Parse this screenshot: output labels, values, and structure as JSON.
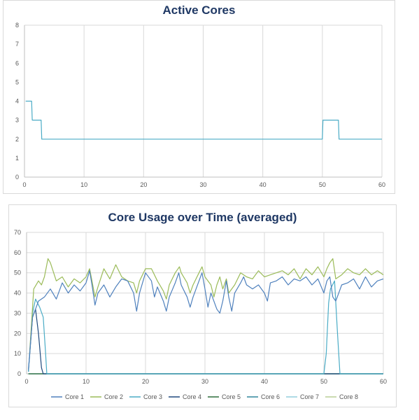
{
  "chart_data": [
    {
      "type": "line",
      "title": "Active Cores",
      "xlabel": "",
      "ylabel": "",
      "xlim": [
        0,
        60
      ],
      "ylim": [
        0,
        8
      ],
      "x_ticks": [
        "0",
        "10",
        "20",
        "30",
        "40",
        "50",
        "60"
      ],
      "y_ticks": [
        "0",
        "1",
        "2",
        "3",
        "4",
        "5",
        "6",
        "7",
        "8"
      ],
      "grid": "vertical",
      "legend": "none",
      "series": [
        {
          "color": "#4bacc6",
          "points": [
            [
              0.2,
              4
            ],
            [
              1.2,
              4
            ],
            [
              1.3,
              3
            ],
            [
              2.8,
              3
            ],
            [
              2.9,
              2
            ],
            [
              50.0,
              2
            ],
            [
              50.1,
              3
            ],
            [
              52.7,
              3
            ],
            [
              52.8,
              2
            ],
            [
              60,
              2
            ]
          ]
        }
      ]
    },
    {
      "type": "line",
      "title": "Core Usage over Time (averaged)",
      "xlabel": "",
      "ylabel": "",
      "xlim": [
        0,
        60
      ],
      "ylim": [
        0,
        70
      ],
      "x_ticks": [
        "0",
        "10",
        "20",
        "30",
        "40",
        "50",
        "60"
      ],
      "y_ticks": [
        "0",
        "10",
        "20",
        "30",
        "40",
        "50",
        "60",
        "70"
      ],
      "grid": "both",
      "legend": "bottom",
      "series": [
        {
          "name": "Core 1",
          "color": "#4f81bd",
          "points": [
            [
              0.3,
              2
            ],
            [
              1,
              28
            ],
            [
              2,
              36
            ],
            [
              3,
              38
            ],
            [
              4,
              42
            ],
            [
              5,
              37
            ],
            [
              6,
              45
            ],
            [
              7,
              40
            ],
            [
              8,
              44
            ],
            [
              9,
              41
            ],
            [
              10,
              45
            ],
            [
              10.6,
              51
            ],
            [
              11,
              44
            ],
            [
              11.5,
              34
            ],
            [
              12,
              40
            ],
            [
              13,
              44
            ],
            [
              14,
              38
            ],
            [
              15,
              43
            ],
            [
              16,
              47
            ],
            [
              17,
              46
            ],
            [
              18,
              40
            ],
            [
              18.5,
              31
            ],
            [
              19,
              40
            ],
            [
              20,
              50
            ],
            [
              21,
              46
            ],
            [
              21.5,
              38
            ],
            [
              22,
              43
            ],
            [
              23,
              36
            ],
            [
              23.5,
              31
            ],
            [
              24,
              38
            ],
            [
              25,
              45
            ],
            [
              25.6,
              50
            ],
            [
              26,
              44
            ],
            [
              27,
              38
            ],
            [
              27.5,
              33
            ],
            [
              28,
              38
            ],
            [
              29,
              46
            ],
            [
              29.5,
              50
            ],
            [
              30,
              42
            ],
            [
              30.5,
              33
            ],
            [
              31,
              40
            ],
            [
              32,
              32
            ],
            [
              32.5,
              30
            ],
            [
              33,
              36
            ],
            [
              33.6,
              46
            ],
            [
              34,
              38
            ],
            [
              34.5,
              31
            ],
            [
              35,
              40
            ],
            [
              36,
              45
            ],
            [
              36.5,
              48
            ],
            [
              37,
              44
            ],
            [
              38,
              42
            ],
            [
              39,
              44
            ],
            [
              40,
              40
            ],
            [
              40.5,
              36
            ],
            [
              41,
              45
            ],
            [
              42,
              46
            ],
            [
              43,
              48
            ],
            [
              44,
              44
            ],
            [
              45,
              47
            ],
            [
              46,
              46
            ],
            [
              47,
              48
            ],
            [
              48,
              44
            ],
            [
              49,
              47
            ],
            [
              50,
              40
            ],
            [
              50.5,
              46
            ],
            [
              51,
              48
            ],
            [
              51.5,
              38
            ],
            [
              52,
              36
            ],
            [
              52.5,
              40
            ],
            [
              53,
              44
            ],
            [
              54,
              45
            ],
            [
              55,
              47
            ],
            [
              56,
              42
            ],
            [
              57,
              48
            ],
            [
              58,
              43
            ],
            [
              59,
              46
            ],
            [
              60,
              47
            ]
          ]
        },
        {
          "name": "Core 2",
          "color": "#9bbb59",
          "points": [
            [
              0.5,
              10
            ],
            [
              1.2,
              42
            ],
            [
              2,
              46
            ],
            [
              2.5,
              44
            ],
            [
              3,
              48
            ],
            [
              3.6,
              57
            ],
            [
              4,
              55
            ],
            [
              5,
              46
            ],
            [
              6,
              48
            ],
            [
              7,
              43
            ],
            [
              8,
              47
            ],
            [
              9,
              45
            ],
            [
              10,
              48
            ],
            [
              10.6,
              52
            ],
            [
              11,
              46
            ],
            [
              11.5,
              38
            ],
            [
              12,
              43
            ],
            [
              13,
              52
            ],
            [
              14,
              47
            ],
            [
              15,
              54
            ],
            [
              16,
              48
            ],
            [
              17,
              46
            ],
            [
              18,
              45
            ],
            [
              18.5,
              40
            ],
            [
              19,
              46
            ],
            [
              20,
              52
            ],
            [
              21,
              52
            ],
            [
              22,
              46
            ],
            [
              23,
              41
            ],
            [
              23.5,
              37
            ],
            [
              24,
              44
            ],
            [
              25,
              50
            ],
            [
              25.7,
              53
            ],
            [
              26,
              50
            ],
            [
              27,
              45
            ],
            [
              27.5,
              40
            ],
            [
              28,
              44
            ],
            [
              29,
              50
            ],
            [
              29.5,
              53
            ],
            [
              30,
              48
            ],
            [
              31,
              44
            ],
            [
              31.5,
              38
            ],
            [
              32,
              44
            ],
            [
              32.5,
              48
            ],
            [
              33,
              42
            ],
            [
              33.6,
              47
            ],
            [
              34,
              40
            ],
            [
              35,
              44
            ],
            [
              36,
              50
            ],
            [
              37,
              48
            ],
            [
              38,
              47
            ],
            [
              39,
              51
            ],
            [
              40,
              48
            ],
            [
              41,
              49
            ],
            [
              42,
              50
            ],
            [
              43,
              51
            ],
            [
              44,
              49
            ],
            [
              45,
              52
            ],
            [
              46,
              47
            ],
            [
              47,
              52
            ],
            [
              48,
              49
            ],
            [
              49,
              53
            ],
            [
              50,
              48
            ],
            [
              50.5,
              52
            ],
            [
              51,
              55
            ],
            [
              51.5,
              57
            ],
            [
              52,
              47
            ],
            [
              53,
              49
            ],
            [
              54,
              52
            ],
            [
              55,
              50
            ],
            [
              56,
              49
            ],
            [
              57,
              52
            ],
            [
              58,
              49
            ],
            [
              59,
              51
            ],
            [
              60,
              49
            ]
          ]
        },
        {
          "name": "Core 3",
          "color": "#4bacc6",
          "points": [
            [
              0.3,
              1
            ],
            [
              1,
              30
            ],
            [
              1.5,
              37
            ],
            [
              2.2,
              33
            ],
            [
              2.8,
              28
            ],
            [
              3.2,
              10
            ],
            [
              3.4,
              0
            ],
            [
              50,
              0
            ],
            [
              50.4,
              10
            ],
            [
              50.8,
              35
            ],
            [
              51.1,
              42
            ],
            [
              51.8,
              46
            ],
            [
              52.3,
              20
            ],
            [
              52.7,
              0
            ],
            [
              60,
              0
            ]
          ]
        },
        {
          "name": "Core 4",
          "color": "#1f497d",
          "points": [
            [
              0.3,
              1
            ],
            [
              1,
              28
            ],
            [
              1.5,
              32
            ],
            [
              2,
              20
            ],
            [
              2.5,
              3
            ],
            [
              2.8,
              0
            ],
            [
              60,
              0
            ]
          ]
        },
        {
          "name": "Core 5",
          "color": "#2e6e3a",
          "points": [
            [
              0.3,
              0
            ],
            [
              60,
              0
            ]
          ]
        },
        {
          "name": "Core 6",
          "color": "#31859c",
          "points": [
            [
              0.3,
              0
            ],
            [
              60,
              0
            ]
          ]
        },
        {
          "name": "Core 7",
          "color": "#92cddc",
          "points": [
            [
              0.3,
              0
            ],
            [
              60,
              0
            ]
          ]
        },
        {
          "name": "Core 8",
          "color": "#b9cd96",
          "points": [
            [
              0.3,
              0
            ],
            [
              60,
              0
            ]
          ]
        }
      ]
    }
  ]
}
